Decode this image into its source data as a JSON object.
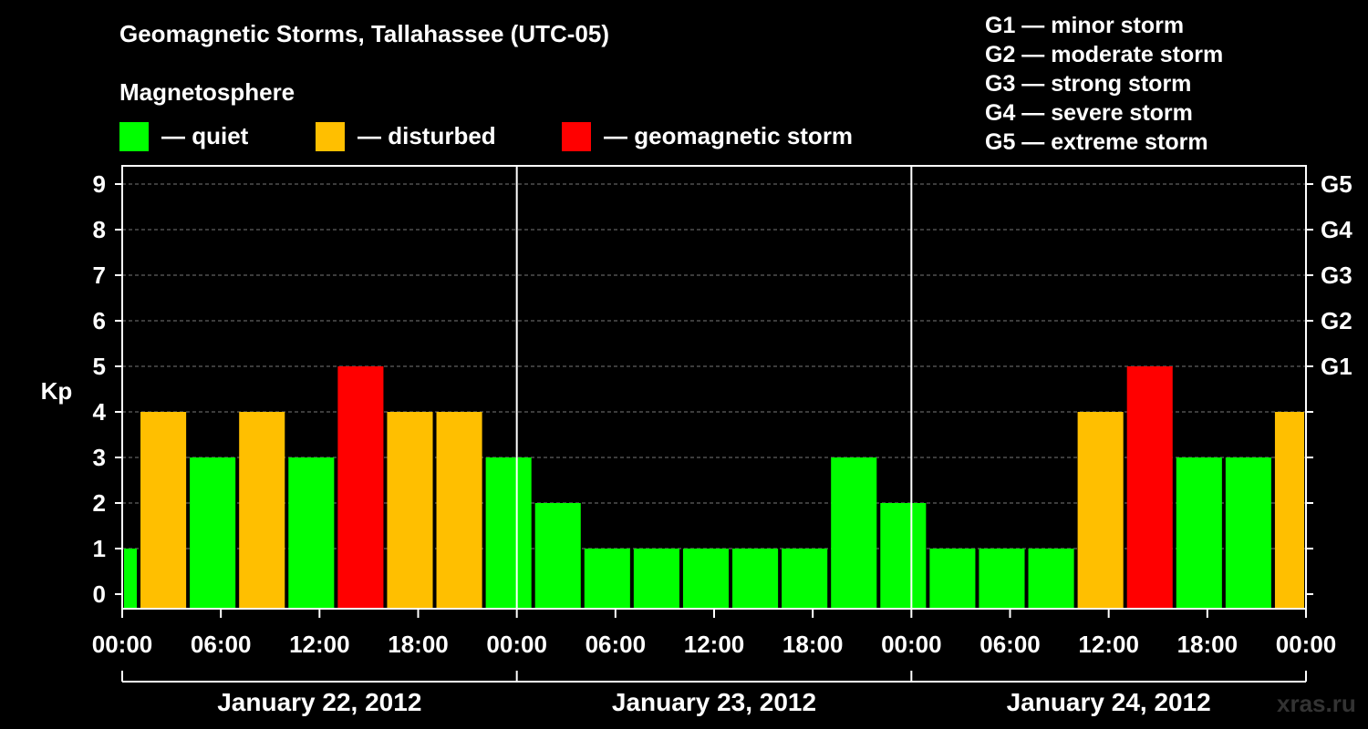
{
  "title": "Geomagnetic Storms, Tallahassee (UTC-05)",
  "subtitle": "Magnetosphere",
  "legend": [
    {
      "label": "— quiet",
      "color": "#00ff00"
    },
    {
      "label": "— disturbed",
      "color": "#ffbf00"
    },
    {
      "label": "— geomagnetic storm",
      "color": "#ff0000"
    }
  ],
  "g_scale": [
    {
      "label": "G1 — minor storm"
    },
    {
      "label": "G2 — moderate storm"
    },
    {
      "label": "G3 — strong storm"
    },
    {
      "label": "G4 — severe storm"
    },
    {
      "label": "G5 — extreme storm"
    }
  ],
  "watermark": "xras.ru",
  "chart_data": {
    "type": "bar",
    "ylabel": "Kp",
    "ylim": [
      0,
      9
    ],
    "yticks": [
      0,
      1,
      2,
      3,
      4,
      5,
      6,
      7,
      8,
      9
    ],
    "right_axis": [
      {
        "label": "G1",
        "kp": 5
      },
      {
        "label": "G2",
        "kp": 6
      },
      {
        "label": "G3",
        "kp": 7
      },
      {
        "label": "G4",
        "kp": 8
      },
      {
        "label": "G5",
        "kp": 9
      }
    ],
    "x_tick_labels": [
      "00:00",
      "06:00",
      "12:00",
      "18:00",
      "00:00",
      "06:00",
      "12:00",
      "18:00",
      "00:00",
      "06:00",
      "12:00",
      "18:00",
      "00:00"
    ],
    "days": [
      "January 22, 2012",
      "January 23, 2012",
      "January 24, 2012"
    ],
    "grid": "dashed horizontal",
    "colors": {
      "quiet": "#00ff00",
      "disturbed": "#ffbf00",
      "storm": "#ff0000"
    },
    "bars": [
      {
        "start_hour": 0,
        "end_hour": 1,
        "kp": 1,
        "level": "quiet"
      },
      {
        "start_hour": 1,
        "end_hour": 4,
        "kp": 4,
        "level": "disturbed"
      },
      {
        "start_hour": 4,
        "end_hour": 7,
        "kp": 3,
        "level": "quiet"
      },
      {
        "start_hour": 7,
        "end_hour": 10,
        "kp": 4,
        "level": "disturbed"
      },
      {
        "start_hour": 10,
        "end_hour": 13,
        "kp": 3,
        "level": "quiet"
      },
      {
        "start_hour": 13,
        "end_hour": 16,
        "kp": 5,
        "level": "storm"
      },
      {
        "start_hour": 16,
        "end_hour": 19,
        "kp": 4,
        "level": "disturbed"
      },
      {
        "start_hour": 19,
        "end_hour": 22,
        "kp": 4,
        "level": "disturbed"
      },
      {
        "start_hour": 22,
        "end_hour": 25,
        "kp": 3,
        "level": "quiet"
      },
      {
        "start_hour": 25,
        "end_hour": 28,
        "kp": 2,
        "level": "quiet"
      },
      {
        "start_hour": 28,
        "end_hour": 31,
        "kp": 1,
        "level": "quiet"
      },
      {
        "start_hour": 31,
        "end_hour": 34,
        "kp": 1,
        "level": "quiet"
      },
      {
        "start_hour": 34,
        "end_hour": 37,
        "kp": 1,
        "level": "quiet"
      },
      {
        "start_hour": 37,
        "end_hour": 40,
        "kp": 1,
        "level": "quiet"
      },
      {
        "start_hour": 40,
        "end_hour": 43,
        "kp": 1,
        "level": "quiet"
      },
      {
        "start_hour": 43,
        "end_hour": 46,
        "kp": 3,
        "level": "quiet"
      },
      {
        "start_hour": 46,
        "end_hour": 49,
        "kp": 2,
        "level": "quiet"
      },
      {
        "start_hour": 49,
        "end_hour": 52,
        "kp": 1,
        "level": "quiet"
      },
      {
        "start_hour": 52,
        "end_hour": 55,
        "kp": 1,
        "level": "quiet"
      },
      {
        "start_hour": 55,
        "end_hour": 58,
        "kp": 1,
        "level": "quiet"
      },
      {
        "start_hour": 58,
        "end_hour": 61,
        "kp": 4,
        "level": "disturbed"
      },
      {
        "start_hour": 61,
        "end_hour": 64,
        "kp": 5,
        "level": "storm"
      },
      {
        "start_hour": 64,
        "end_hour": 67,
        "kp": 3,
        "level": "quiet"
      },
      {
        "start_hour": 67,
        "end_hour": 70,
        "kp": 3,
        "level": "quiet"
      },
      {
        "start_hour": 70,
        "end_hour": 72,
        "kp": 4,
        "level": "disturbed"
      }
    ]
  }
}
